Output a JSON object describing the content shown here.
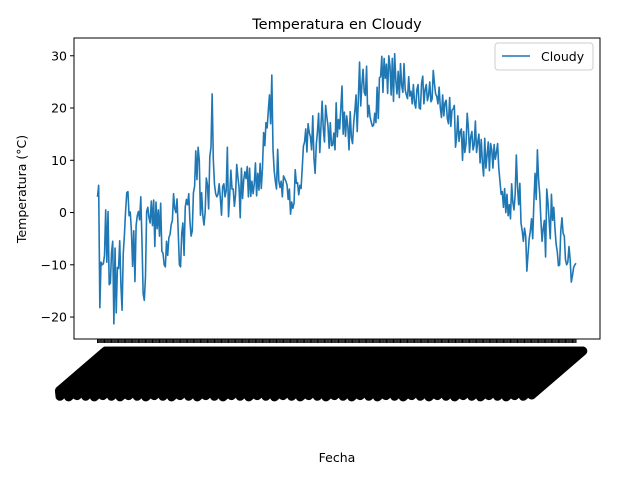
{
  "chart_data": {
    "type": "line",
    "title": "Temperatura en Cloudy",
    "xlabel": "Fecha",
    "ylabel": "Temperatura (°C)",
    "ylim": [
      -24.2,
      33.4
    ],
    "yticks": [
      -20,
      -10,
      0,
      10,
      20,
      30
    ],
    "xtick_labels_note": "overlapping, illegible date tick labels rotated ~45°",
    "legend": {
      "position": "top-right",
      "label": "Cloudy"
    },
    "grid": false,
    "series": [
      {
        "name": "Cloudy",
        "color": "#1f77b4",
        "y": [
          3.0,
          5.2,
          -18.2,
          -9.5,
          -10.0,
          -9.8,
          -8.2,
          0.5,
          -9.5,
          0.2,
          -13.8,
          -13.5,
          -7.6,
          -5.5,
          -21.3,
          -6.8,
          -19.2,
          -10.5,
          -10.7,
          -5.4,
          -13.8,
          -18.7,
          -7.9,
          -4.3,
          0.2,
          3.8,
          4.0,
          -0.6,
          0.1,
          -3.5,
          -10.3,
          -3.5,
          -13.2,
          -2.5,
          -0.6,
          0.2,
          -1.4,
          3.0,
          -5.3,
          -15.5,
          -16.8,
          -12.4,
          0.2,
          1.0,
          -1.0,
          -2.0,
          2.2,
          -2.5,
          2.4,
          -6.5,
          2.0,
          -3.1,
          0.5,
          -4.5,
          1.8,
          -7.4,
          -7.8,
          -10.0,
          -10.4,
          -5.5,
          -8.2,
          -4.8,
          -4.2,
          -2.3,
          -1.5,
          3.6,
          0.8,
          0.0,
          2.6,
          -3.7,
          -10.0,
          -10.4,
          -4.0,
          -2.0,
          -8.2,
          1.0,
          2.5,
          1.5,
          3.6,
          -1.6,
          -4.5,
          -3.5,
          3.8,
          5.0,
          11.8,
          6.3,
          12.5,
          10.0,
          -0.5,
          3.8,
          -0.5,
          -2.4,
          0.0,
          6.6,
          5.3,
          0.7,
          10.7,
          12.5,
          22.7,
          10.1,
          5.4,
          3.6,
          3.0,
          3.5,
          5.5,
          2.8,
          -0.5,
          5.0,
          5.5,
          3.0,
          4.2,
          12.5,
          -0.8,
          3.2,
          8.1,
          4.5,
          4.5,
          1.2,
          3.4,
          9.2,
          6.8,
          4.8,
          -1.0,
          8.5,
          2.7,
          6.3,
          7.8,
          6.5,
          8.8,
          3.0,
          8.5,
          3.1,
          6.0,
          3.6,
          5.5,
          9.5,
          3.2,
          7.5,
          4.3,
          9.4,
          4.6,
          8.5,
          15.3,
          12.8,
          17.2,
          16.2,
          19.5,
          22.5,
          17.0,
          26.3,
          12.2,
          8.1,
          6.0,
          4.5,
          12.1,
          6.0,
          4.8,
          6.0,
          3.0,
          7.0,
          6.5,
          6.0,
          5.3,
          2.5,
          4.5,
          -0.3,
          2.0,
          0.8,
          1.8,
          8.2,
          5.6,
          5.7,
          3.4,
          5.2,
          4.6,
          8.5,
          12.7,
          13.5,
          16.0,
          11.6,
          17.0,
          15.3,
          14.5,
          12.0,
          18.5,
          10.5,
          7.5,
          13.0,
          15.5,
          19.0,
          11.5,
          16.5,
          21.3,
          16.0,
          13.5,
          20.5,
          18.3,
          16.6,
          12.3,
          17.2,
          12.8,
          12.9,
          15.2,
          12.0,
          21.0,
          14.5,
          17.8,
          16.0,
          20.0,
          24.2,
          15.0,
          19.2,
          14.6,
          18.5,
          16.5,
          12.0,
          19.3,
          14.4,
          13.2,
          17.2,
          19.5,
          22.5,
          15.5,
          22.0,
          28.8,
          20.4,
          24.5,
          27.4,
          23.0,
          22.4,
          28.0,
          18.3,
          20.5,
          18.3,
          17.3,
          16.5,
          16.7,
          19.0,
          17.2,
          24.0,
          18.0,
          25.8,
          26.0,
          29.9,
          23.0,
          29.5,
          25.7,
          28.4,
          22.8,
          30.0,
          28.0,
          22.5,
          29.5,
          21.3,
          30.4,
          25.3,
          22.7,
          27.0,
          22.0,
          28.5,
          24.3,
          23.0,
          28.5,
          23.5,
          22.5,
          21.8,
          26.0,
          22.3,
          23.2,
          20.8,
          24.5,
          21.0,
          20.0,
          23.5,
          24.5,
          20.0,
          19.8,
          24.8,
          26.1,
          20.8,
          23.5,
          24.5,
          21.4,
          22.4,
          25.0,
          21.2,
          21.7,
          27.2,
          24.7,
          22.7,
          22.2,
          20.8,
          24.0,
          20.1,
          18.2,
          22.5,
          18.5,
          21.0,
          21.5,
          18.0,
          17.0,
          22.0,
          16.5,
          19.6,
          19.8,
          20.5,
          12.5,
          14.5,
          18.5,
          13.6,
          15.5,
          16.0,
          10.0,
          15.5,
          11.5,
          13.2,
          19.0,
          16.2,
          11.5,
          14.5,
          15.5,
          12.0,
          13.0,
          17.5,
          11.5,
          13.5,
          15.0,
          9.5,
          14.0,
          9.5,
          7.0,
          14.2,
          8.5,
          11.0,
          13.5,
          8.0,
          13.2,
          12.0,
          8.5,
          13.0,
          10.2,
          11.5,
          13.2,
          8.5,
          6.0,
          3.5,
          4.0,
          1.0,
          4.6,
          0.0,
          3.5,
          -0.6,
          1.5,
          -1.2,
          5.5,
          2.0,
          0.5,
          3.5,
          11.0,
          5.0,
          1.5,
          5.6,
          -2.0,
          -3.5,
          -5.5,
          -3.0,
          -4.5,
          -11.2,
          -8.0,
          -5.0,
          -3.5,
          -1.2,
          -5.0,
          2.0,
          7.5,
          2.5,
          12.0,
          6.5,
          3.5,
          -1.5,
          -5.5,
          -3.0,
          -1.5,
          -8.5,
          4.5,
          2.0,
          -1.5,
          -5.0,
          3.5,
          -1.5,
          1.0,
          -3.0,
          -6.0,
          -7.5,
          -10.2,
          -10.0,
          -3.5,
          -1.0,
          -4.0,
          -4.5,
          -9.0,
          -10.0,
          -9.5,
          -6.5,
          -9.0,
          -13.3,
          -12.0,
          -10.5,
          -10.0,
          -9.7
        ]
      }
    ]
  }
}
